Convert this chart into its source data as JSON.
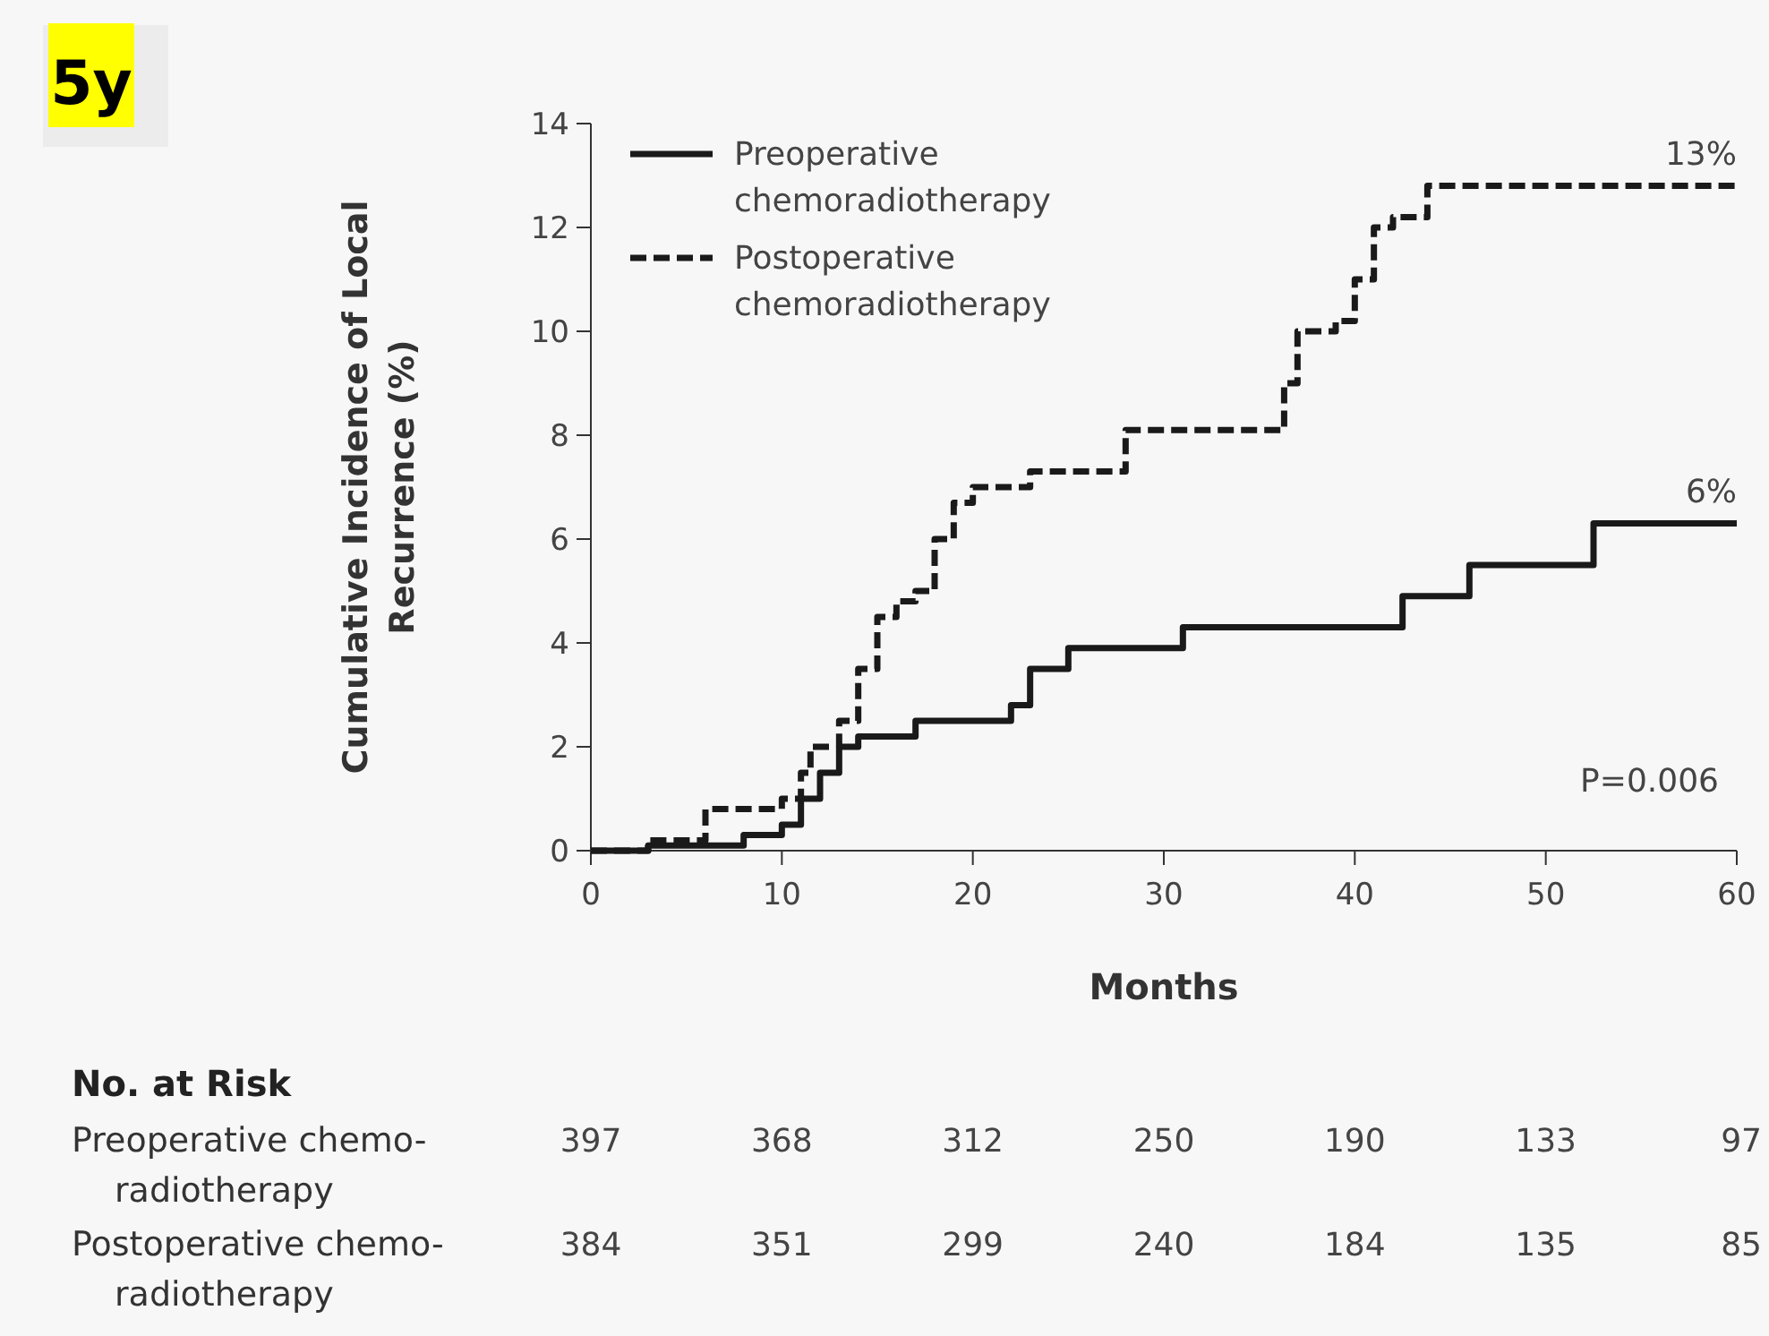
{
  "chart_data": {
    "type": "step",
    "xlabel": "Months",
    "ylabel": "Cumulative Incidence of Local Recurrence (%)",
    "xlim": [
      0,
      60
    ],
    "ylim": [
      0,
      14
    ],
    "xticks": [
      0,
      10,
      20,
      30,
      40,
      50,
      60
    ],
    "yticks": [
      0,
      2,
      4,
      6,
      8,
      10,
      12,
      14
    ],
    "grid": false,
    "legend": "top left",
    "series": [
      {
        "name": "Preoperative chemoradiotherapy",
        "color": "#1a1a1a",
        "line_style": "solid",
        "x": [
          0,
          3,
          8,
          10,
          11,
          12,
          13,
          14,
          17,
          22,
          23,
          25,
          31,
          42.5,
          46,
          52.5,
          60
        ],
        "values": [
          0,
          0.1,
          0.3,
          0.5,
          1.0,
          1.5,
          2.0,
          2.2,
          2.5,
          2.8,
          3.5,
          3.9,
          4.3,
          4.9,
          5.5,
          6.3,
          6.3
        ]
      },
      {
        "name": "Postoperative chemoradiotherapy",
        "color": "#1a1a1a",
        "line_style": "dashed",
        "x": [
          0,
          3,
          6,
          9,
          10,
          11,
          11.5,
          13,
          14,
          15,
          16,
          17,
          18,
          19,
          20,
          23,
          28,
          36,
          36.3,
          37,
          39,
          40,
          41,
          42,
          43.8,
          60
        ],
        "values": [
          0,
          0.2,
          0.8,
          0.8,
          1.0,
          1.5,
          2.0,
          2.5,
          3.5,
          4.5,
          4.8,
          5.0,
          6.0,
          6.7,
          7.0,
          7.3,
          8.1,
          8.1,
          9.0,
          10.0,
          10.2,
          11.0,
          12.0,
          12.2,
          12.8,
          12.8
        ]
      }
    ],
    "annotations": [
      {
        "text": "13%",
        "x": 60,
        "y": 12.8
      },
      {
        "text": "6%",
        "x": 60,
        "y": 6.3
      },
      "P=0.006",
      "No. at Risk",
      "Preoperative chemo-radiotherapy",
      "397",
      "368",
      "312",
      "250",
      "190",
      "133",
      "97",
      "Postoperative chemo-radiotherapy",
      "384",
      "351",
      "299",
      "240",
      "184",
      "135",
      "85",
      "5y"
    ]
  }
}
